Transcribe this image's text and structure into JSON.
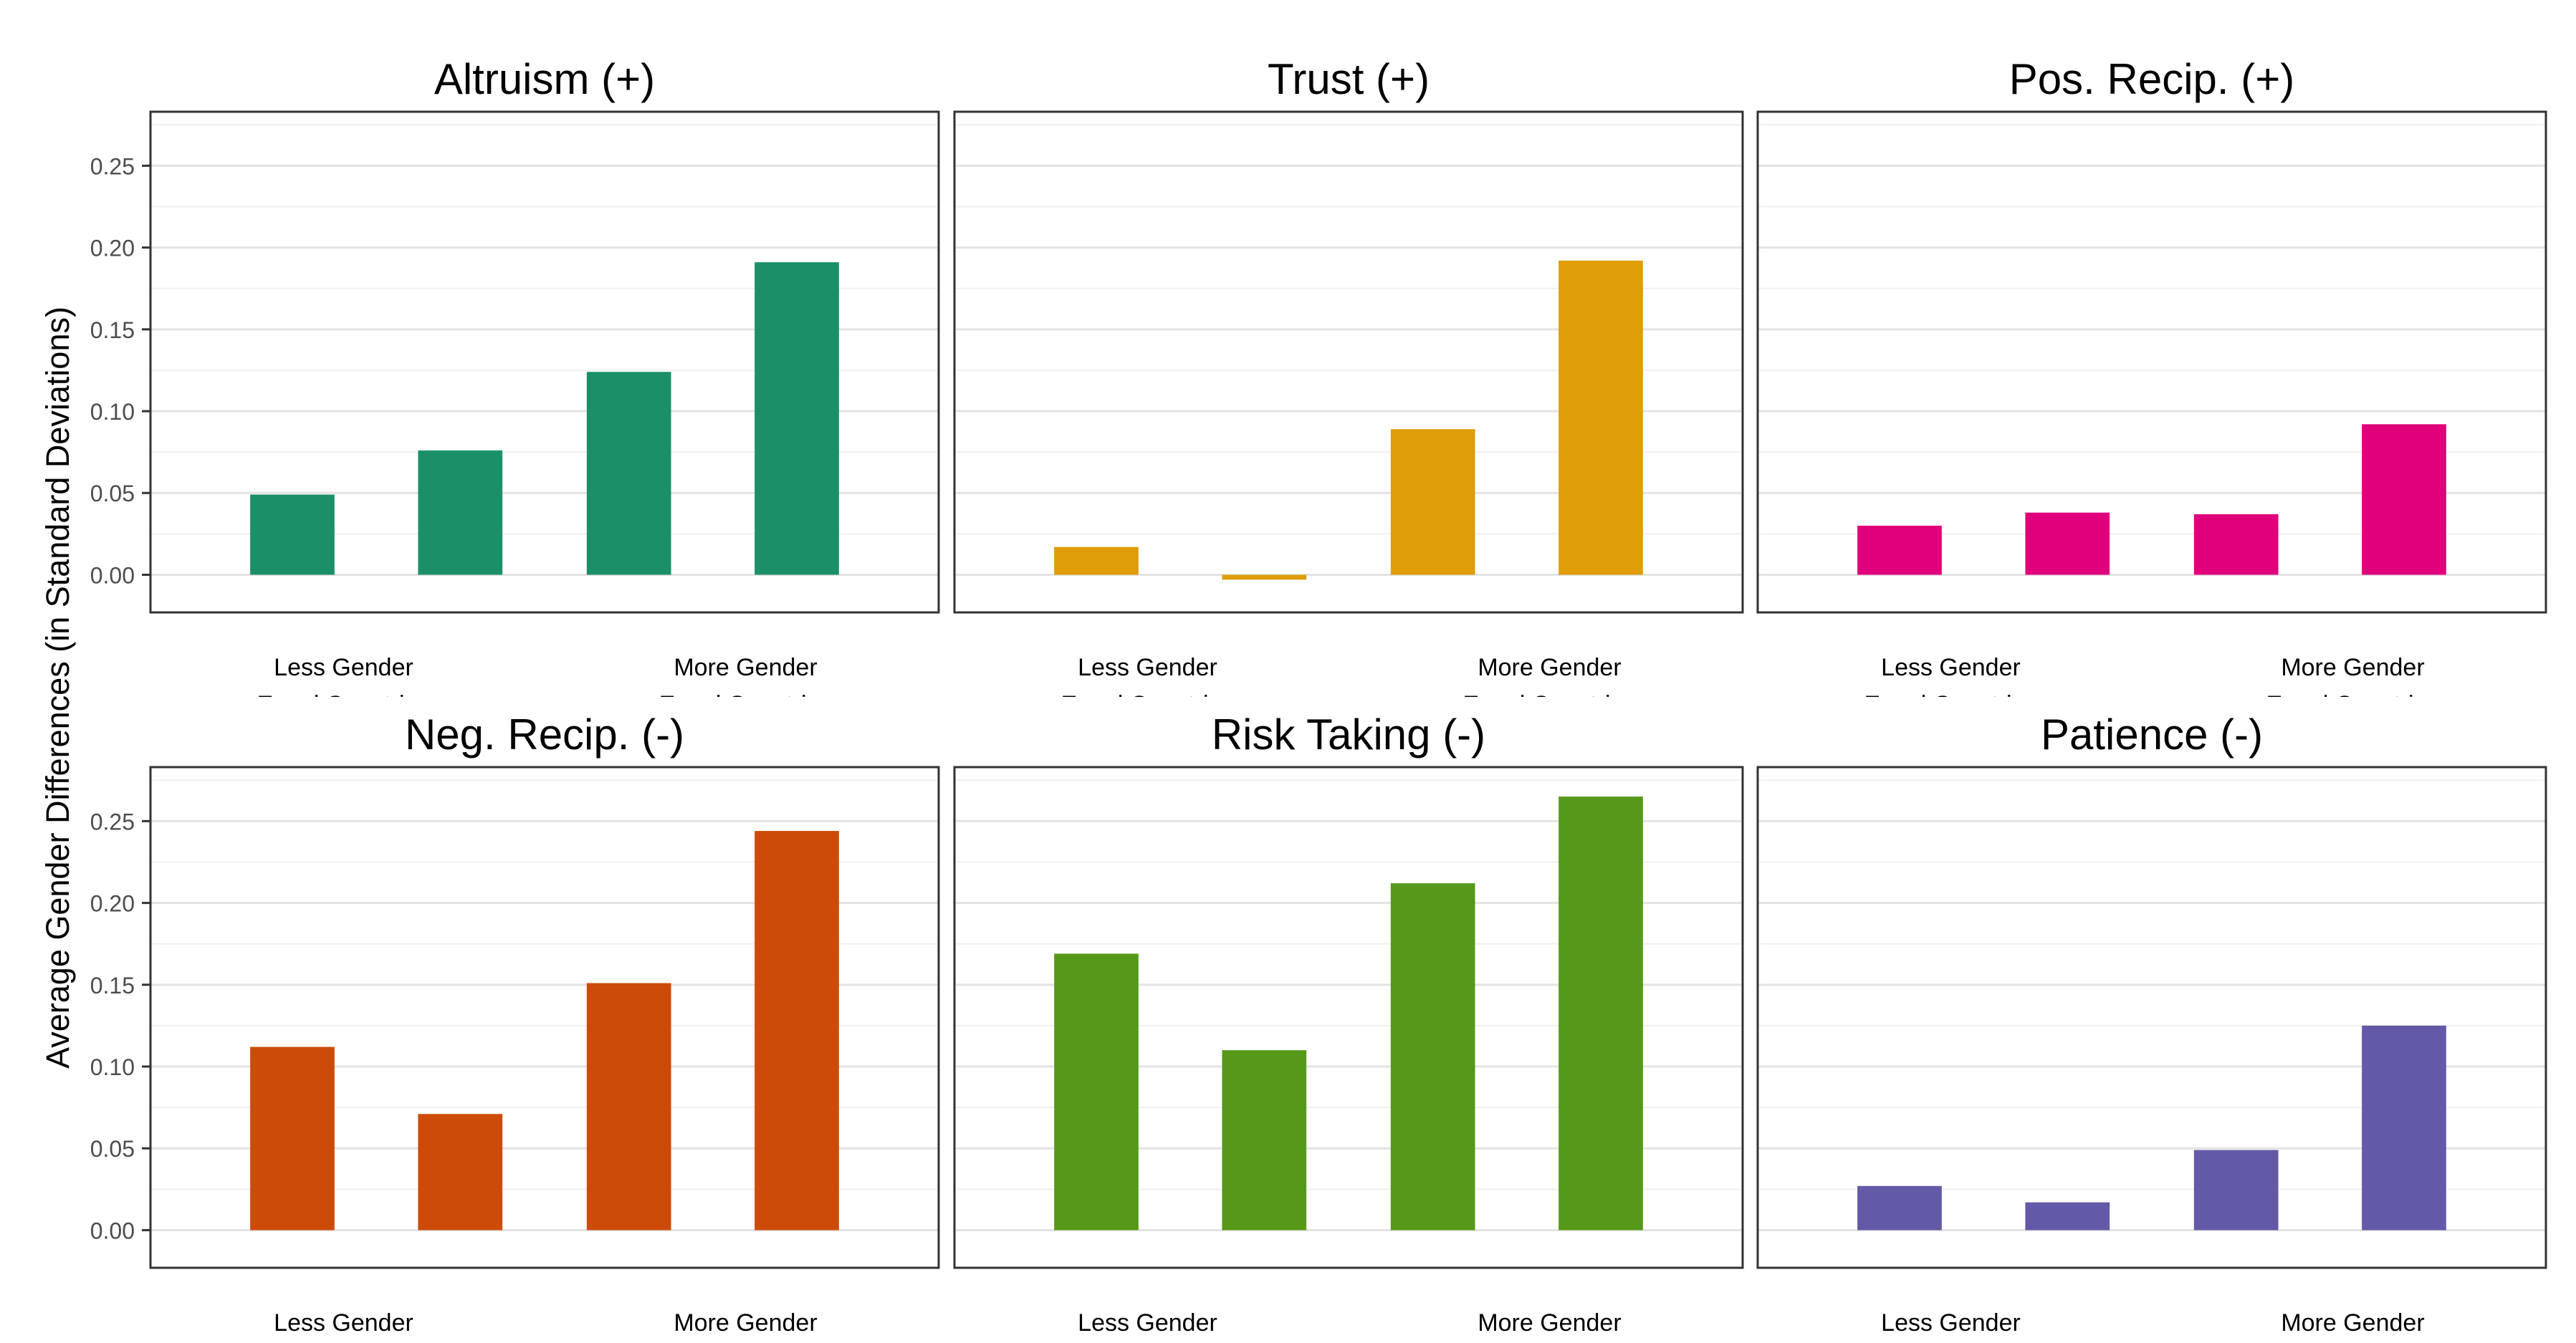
{
  "figure": {
    "ylabel": "Average Gender Differences (in Standard Deviations)",
    "x_tick_labels": [
      {
        "line1": "Less Gender",
        "line2": "Equal Countries"
      },
      {
        "line1": "More Gender",
        "line2": "Equal Countries"
      }
    ]
  },
  "chart_data": [
    {
      "type": "bar",
      "title": "Altruism (+)",
      "color": "#1b9068",
      "values": [
        0.049,
        0.076,
        0.124,
        0.191
      ],
      "ylim": [
        -0.023,
        0.283
      ],
      "yticks": [
        0.0,
        0.05,
        0.1,
        0.15,
        0.2,
        0.25
      ],
      "yticklabels": [
        "0.00",
        "0.05",
        "0.10",
        "0.15",
        "0.20",
        "0.25"
      ],
      "grid": true,
      "legend": "none"
    },
    {
      "type": "bar",
      "title": "Trust (+)",
      "color": "#de9d09",
      "values": [
        0.017,
        -0.003,
        0.089,
        0.192
      ],
      "ylim": [
        -0.023,
        0.283
      ],
      "yticks": [
        0.0,
        0.05,
        0.1,
        0.15,
        0.2,
        0.25
      ],
      "grid": true,
      "legend": "none"
    },
    {
      "type": "bar",
      "title": "Pos. Recip. (+)",
      "color": "#e0007b",
      "values": [
        0.03,
        0.038,
        0.037,
        0.092
      ],
      "ylim": [
        -0.023,
        0.283
      ],
      "yticks": [
        0.0,
        0.05,
        0.1,
        0.15,
        0.2,
        0.25
      ],
      "grid": true,
      "legend": "none"
    },
    {
      "type": "bar",
      "title": "Neg. Recip. (-)",
      "color": "#cc4b09",
      "values": [
        0.112,
        0.071,
        0.151,
        0.244
      ],
      "ylim": [
        -0.023,
        0.283
      ],
      "yticks": [
        0.0,
        0.05,
        0.1,
        0.15,
        0.2,
        0.25
      ],
      "yticklabels": [
        "0.00",
        "0.05",
        "0.10",
        "0.15",
        "0.20",
        "0.25"
      ],
      "grid": true,
      "legend": "none"
    },
    {
      "type": "bar",
      "title": "Risk Taking (-)",
      "color": "#569919",
      "values": [
        0.169,
        0.11,
        0.212,
        0.265
      ],
      "ylim": [
        -0.023,
        0.283
      ],
      "yticks": [
        0.0,
        0.05,
        0.1,
        0.15,
        0.2,
        0.25
      ],
      "grid": true,
      "legend": "none"
    },
    {
      "type": "bar",
      "title": "Patience (-)",
      "color": "#625aa6",
      "values": [
        0.027,
        0.017,
        0.049,
        0.125
      ],
      "ylim": [
        -0.023,
        0.283
      ],
      "yticks": [
        0.0,
        0.05,
        0.1,
        0.15,
        0.2,
        0.25
      ],
      "grid": true,
      "legend": "none"
    }
  ]
}
